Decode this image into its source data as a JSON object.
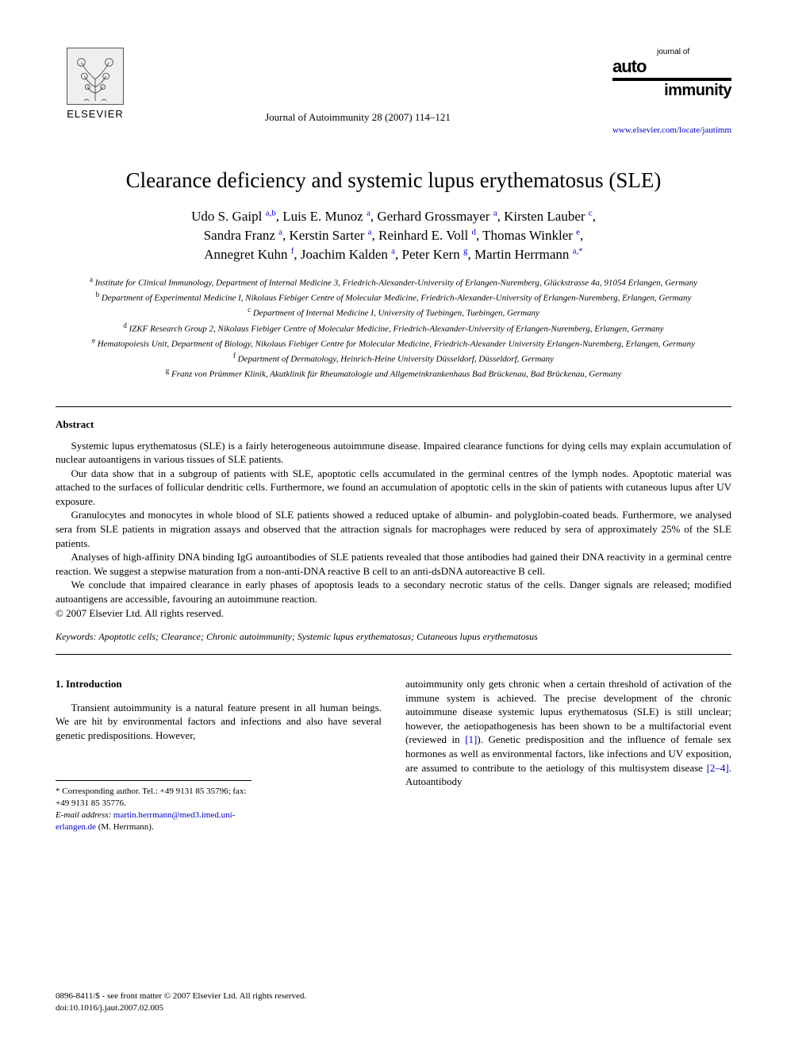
{
  "publisher": {
    "name": "ELSEVIER",
    "logo_bg": "#efefef",
    "logo_border": "#555555"
  },
  "journal_ref": "Journal of Autoimmunity 28 (2007) 114–121",
  "journal_logo": {
    "top_text": "journal of",
    "word1": "auto",
    "word2": "immunity"
  },
  "journal_url": "www.elsevier.com/locate/jautimm",
  "title": "Clearance deficiency and systemic lupus erythematosus (SLE)",
  "authors_html": "Udo S. Gaipl <sup>a,b</sup>, Luis E. Munoz <sup>a</sup>, Gerhard Grossmayer <sup>a</sup>, Kirsten Lauber <sup>c</sup>,<br>Sandra Franz <sup>a</sup>, Kerstin Sarter <sup>a</sup>, Reinhard E. Voll <sup>d</sup>, Thomas Winkler <sup>e</sup>,<br>Annegret Kuhn <sup>f</sup>, Joachim Kalden <sup>a</sup>, Peter Kern <sup>g</sup>, Martin Herrmann <sup>a,</sup><sup class=\"star\">*</sup>",
  "affiliations": [
    {
      "key": "a",
      "text": "Institute for Clinical Immunology, Department of Internal Medicine 3, Friedrich-Alexander-University of Erlangen-Nuremberg, Glückstrasse 4a, 91054 Erlangen, Germany"
    },
    {
      "key": "b",
      "text": "Department of Experimental Medicine I, Nikolaus Fiebiger Centre of Molecular Medicine, Friedrich-Alexander-University of Erlangen-Nuremberg, Erlangen, Germany"
    },
    {
      "key": "c",
      "text": "Department of Internal Medicine I, University of Tuebingen, Tuebingen, Germany"
    },
    {
      "key": "d",
      "text": "IZKF Research Group 2, Nikolaus Fiebiger Centre of Molecular Medicine, Friedrich-Alexander-University of Erlangen-Nuremberg, Erlangen, Germany"
    },
    {
      "key": "e",
      "text": "Hematopoiesis Unit, Department of Biology, Nikolaus Fiebiger Centre for Molecular Medicine, Friedrich-Alexander University Erlangen-Nuremberg, Erlangen, Germany"
    },
    {
      "key": "f",
      "text": "Department of Dermatology, Heinrich-Heine University Düsseldorf, Düsseldorf, Germany"
    },
    {
      "key": "g",
      "text": "Franz von Prümmer Klinik, Akutklinik für Rheumatologie und Allgemeinkrankenhaus Bad Brückenau, Bad Brückenau, Germany"
    }
  ],
  "abstract_heading": "Abstract",
  "abstract_paragraphs": [
    "Systemic lupus erythematosus (SLE) is a fairly heterogeneous autoimmune disease. Impaired clearance functions for dying cells may explain accumulation of nuclear autoantigens in various tissues of SLE patients.",
    "Our data show that in a subgroup of patients with SLE, apoptotic cells accumulated in the germinal centres of the lymph nodes. Apoptotic material was attached to the surfaces of follicular dendritic cells. Furthermore, we found an accumulation of apoptotic cells in the skin of patients with cutaneous lupus after UV exposure.",
    "Granulocytes and monocytes in whole blood of SLE patients showed a reduced uptake of albumin- and polyglobin-coated beads. Furthermore, we analysed sera from SLE patients in migration assays and observed that the attraction signals for macrophages were reduced by sera of approximately 25% of the SLE patients.",
    "Analyses of high-affinity DNA binding IgG autoantibodies of SLE patients revealed that those antibodies had gained their DNA reactivity in a germinal centre reaction. We suggest a stepwise maturation from a non-anti-DNA reactive B cell to an anti-dsDNA autoreactive B cell.",
    "We conclude that impaired clearance in early phases of apoptosis leads to a secondary necrotic status of the cells. Danger signals are released; modified autoantigens are accessible, favouring an autoimmune reaction."
  ],
  "copyright_line": "© 2007 Elsevier Ltd. All rights reserved.",
  "keywords_label": "Keywords:",
  "keywords_text": "Apoptotic cells; Clearance; Chronic autoimmunity; Systemic lupus erythematosus; Cutaneous lupus erythematosus",
  "section_heading": "1. Introduction",
  "intro_left": "Transient autoimmunity is a natural feature present in all human beings. We are hit by environmental factors and infections and also have several genetic predispositions. However,",
  "intro_right_pre": "autoimmunity only gets chronic when a certain threshold of activation of the immune system is achieved. The precise development of the chronic autoimmune disease systemic lupus erythematosus (SLE) is still unclear; however, the aetiopathogenesis has been shown to be a multifactorial event (reviewed in ",
  "intro_ref1": "[1]",
  "intro_right_mid": "). Genetic predisposition and the influence of female sex hormones as well as environmental factors, like infections and UV exposition, are assumed to contribute to the aetiology of this multisystem disease ",
  "intro_ref2": "[2–4]",
  "intro_right_post": ". Autoantibody",
  "corresponding": {
    "line": "* Corresponding author. Tel.: +49 9131 85 35796; fax: +49 9131 85 35776.",
    "email_label": "E-mail address:",
    "email": "martin.herrmann@med3.imed.uni-erlangen.de",
    "email_suffix": "(M. Herrmann)."
  },
  "footer": {
    "line1": "0896-8411/$ - see front matter © 2007 Elsevier Ltd. All rights reserved.",
    "line2": "doi:10.1016/j.jaut.2007.02.005"
  },
  "colors": {
    "link": "#0000cc",
    "text": "#000000",
    "background": "#ffffff",
    "rule": "#000000"
  },
  "typography": {
    "title_fontsize": 27,
    "authors_fontsize": 17,
    "affil_fontsize": 11,
    "body_fontsize": 13,
    "footer_fontsize": 11,
    "font_family": "Times New Roman"
  }
}
